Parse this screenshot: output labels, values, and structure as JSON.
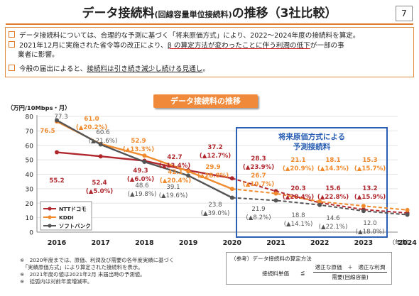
{
  "header": {
    "title_main": "データ接続料",
    "title_paren": "(回線容量単位接続料)",
    "title_tail": "の推移（3社比較）",
    "page_number": "7"
  },
  "bullets": [
    {
      "pre": "データ接続料については、合理的な予測に基づく「将来原価方式」により、2022～2024年度の接続料を算定。",
      "lines": []
    },
    {
      "line1_pre": "2021年12月に実施された省令等の改正により、",
      "line1_u": "β の算定方法が変わったことに伴う利潤の低下",
      "line1_post": "が一部の事",
      "line2": "業者に影響。"
    },
    {
      "pre": "今般の届出によると、",
      "u": "接続料は引き続き減少し続ける見通し",
      "post": "。"
    }
  ],
  "chart_header": "データ接続料の推移",
  "chart_data": {
    "type": "line",
    "ylabel": "（万円/10Mbps・月）",
    "xlabel": "（年度）",
    "ylim": [
      0,
      80
    ],
    "yticks": [
      "0",
      "10",
      "20",
      "30",
      "40",
      "50",
      "60",
      "70",
      "80"
    ],
    "x": [
      "2016",
      "2017",
      "2018",
      "2019",
      "2020",
      "2021",
      "2022",
      "2023",
      "2024"
    ],
    "forecast_box_label": [
      "将来原価方式による",
      "予測接続料"
    ],
    "series": [
      {
        "name": "NTTドコモ",
        "color": "#b0282e",
        "values": [
          55.2,
          52.4,
          49.3,
          42.7,
          37.2,
          28.3,
          20.3,
          15.6,
          13.2
        ],
        "labels": [
          "55.2",
          "52.4",
          "49.3",
          "42.7",
          "37.2",
          "28.3",
          "20.3",
          "15.6",
          "13.2"
        ],
        "changes": [
          "",
          "(▲5.0%)",
          "(▲6.0%)",
          "(▲13.4%)",
          "(▲12.7%)",
          "(▲23.9%)",
          "(▲28.4%)",
          "(▲22.8%)",
          "(▲15.9%)"
        ]
      },
      {
        "name": "KDDI",
        "color": "#f08a2c",
        "values": [
          76.5,
          61.0,
          52.9,
          42.1,
          29.9,
          26.7,
          21.1,
          18.1,
          15.3
        ],
        "labels": [
          "76.5",
          "61.0",
          "52.9",
          "42.1",
          "29.9",
          "26.7",
          "21.1",
          "18.1",
          "15.3"
        ],
        "changes": [
          "",
          "(▲20.2%)",
          "(▲13.3%)",
          "(▲20.4%)",
          "(▲28.8%)",
          "(▲10.7%)",
          "(▲20.9%)",
          "(▲14.3%)",
          "(▲15.7%)"
        ]
      },
      {
        "name": "ソフトバンク",
        "color": "#555555",
        "values": [
          77.3,
          60.6,
          48.6,
          39.1,
          23.8,
          21.9,
          18.8,
          14.6,
          12.0
        ],
        "labels": [
          "77.3",
          "60.6",
          "48.6",
          "39.1",
          "23.8",
          "21.9",
          "18.8",
          "14.6",
          "12.0"
        ],
        "changes": [
          "",
          "(▲21.6%)",
          "(▲19.8%)",
          "(▲19.6%)",
          "(▲39.0%)",
          "(▲8.2%)",
          "(▲14.1%)",
          "(▲22.1%)",
          "(▲18.0%)"
        ]
      }
    ]
  },
  "notes": [
    "※　2020年度までは、原価、利潤及び需要の各年度実績に基づく",
    "　「実績原価方式」により算定された接続料を表示。",
    "※　2021年度の値は2021年2月 末届出時の予測値。",
    "※　括弧内は対前年度増減率。"
  ],
  "formula": {
    "title": "（参考）データ接続料の算定方法",
    "lhs": "接続料単価",
    "op": "≦",
    "numerator": "適正な原価　＋　適正な利潤",
    "denominator": "需要(回線容量)"
  }
}
